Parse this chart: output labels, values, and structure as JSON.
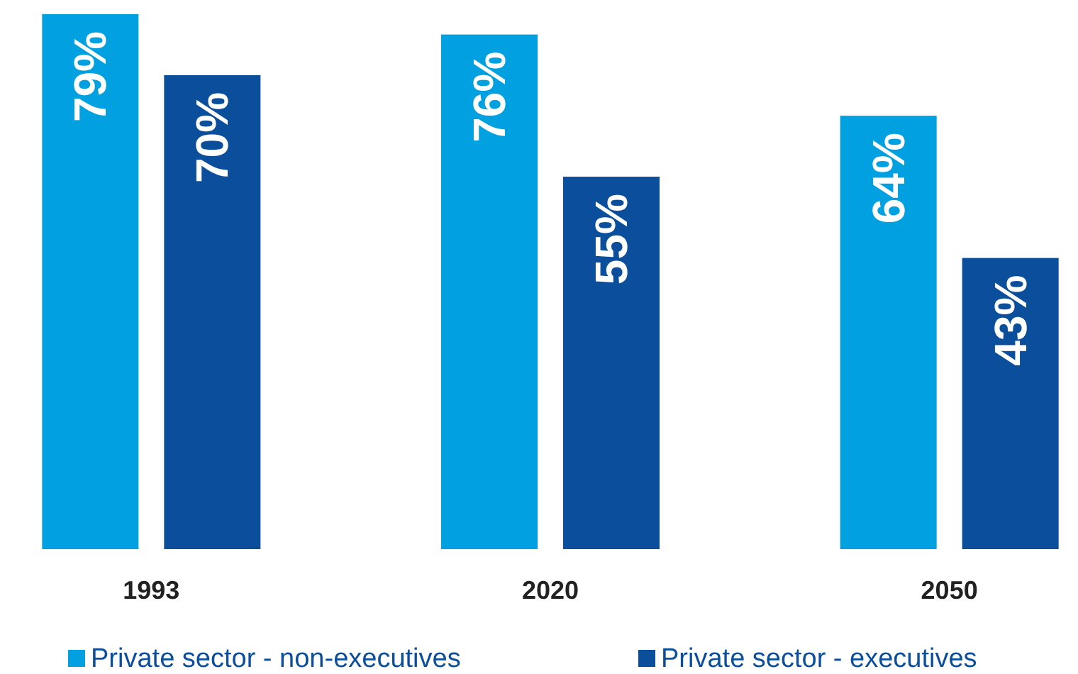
{
  "chart_data": {
    "type": "bar",
    "categories": [
      "1993",
      "2020",
      "2050"
    ],
    "legend": "bottom",
    "series": [
      {
        "name": "Private sector - non-executives",
        "color": "#00a0e1",
        "values": [
          79,
          76,
          64
        ],
        "value_labels": [
          "79%",
          "76%",
          "64%"
        ]
      },
      {
        "name": "Private sector - executives",
        "color": "#0b4f9c",
        "values": [
          70,
          55,
          43
        ],
        "value_labels": [
          "70%",
          "55%",
          "43%"
        ]
      }
    ]
  }
}
